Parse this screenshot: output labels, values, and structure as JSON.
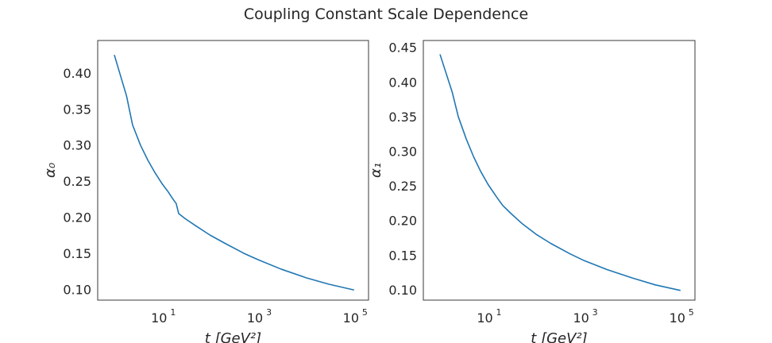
{
  "title": "Coupling Constant Scale Dependence",
  "series_color": "#1f77b4",
  "chart_data": [
    {
      "type": "line",
      "xscale": "log",
      "xlabel": "t  [GeV²]",
      "ylabel": "α₀",
      "xlim": [
        0.45,
        200000
      ],
      "ylim": [
        0.085,
        0.445
      ],
      "xticks": [
        {
          "value": 10,
          "base": "10",
          "exp": "1"
        },
        {
          "value": 1000,
          "base": "10",
          "exp": "3"
        },
        {
          "value": 100000,
          "base": "10",
          "exp": "5"
        }
      ],
      "yticks": [
        0.1,
        0.15,
        0.2,
        0.25,
        0.3,
        0.35,
        0.4
      ],
      "ytick_labels": [
        "0.10",
        "0.15",
        "0.20",
        "0.25",
        "0.30",
        "0.35",
        "0.40"
      ],
      "x": [
        1.0,
        1.8,
        2.4,
        3.5,
        5.0,
        7.0,
        10.0,
        13.0,
        16.0,
        18.0,
        19.5,
        20.5,
        22.0,
        30.0,
        50.0,
        100.0,
        200.0,
        500.0,
        1000.0,
        3000.0,
        10000.0,
        30000.0,
        100000.0
      ],
      "y": [
        0.425,
        0.368,
        0.328,
        0.3,
        0.279,
        0.262,
        0.246,
        0.236,
        0.227,
        0.222,
        0.219,
        0.213,
        0.205,
        0.198,
        0.188,
        0.175,
        0.164,
        0.15,
        0.141,
        0.128,
        0.116,
        0.107,
        0.099
      ]
    },
    {
      "type": "line",
      "xscale": "log",
      "xlabel": "t  [GeV²]",
      "ylabel": "α₁",
      "xlim": [
        0.45,
        200000
      ],
      "ylim": [
        0.085,
        0.46
      ],
      "xticks": [
        {
          "value": 10,
          "base": "10",
          "exp": "1"
        },
        {
          "value": 1000,
          "base": "10",
          "exp": "3"
        },
        {
          "value": 100000,
          "base": "10",
          "exp": "5"
        }
      ],
      "yticks": [
        0.1,
        0.15,
        0.2,
        0.25,
        0.3,
        0.35,
        0.4,
        0.45
      ],
      "ytick_labels": [
        "0.10",
        "0.15",
        "0.20",
        "0.25",
        "0.30",
        "0.35",
        "0.40",
        "0.45"
      ],
      "x": [
        1.0,
        1.8,
        2.4,
        3.5,
        5.0,
        7.0,
        10.0,
        15.0,
        20.0,
        30.0,
        50.0,
        100.0,
        200.0,
        500.0,
        1000.0,
        3000.0,
        10000.0,
        30000.0,
        100000.0
      ],
      "y": [
        0.44,
        0.385,
        0.35,
        0.318,
        0.292,
        0.271,
        0.252,
        0.234,
        0.222,
        0.21,
        0.196,
        0.18,
        0.167,
        0.152,
        0.142,
        0.129,
        0.117,
        0.107,
        0.099
      ]
    }
  ]
}
